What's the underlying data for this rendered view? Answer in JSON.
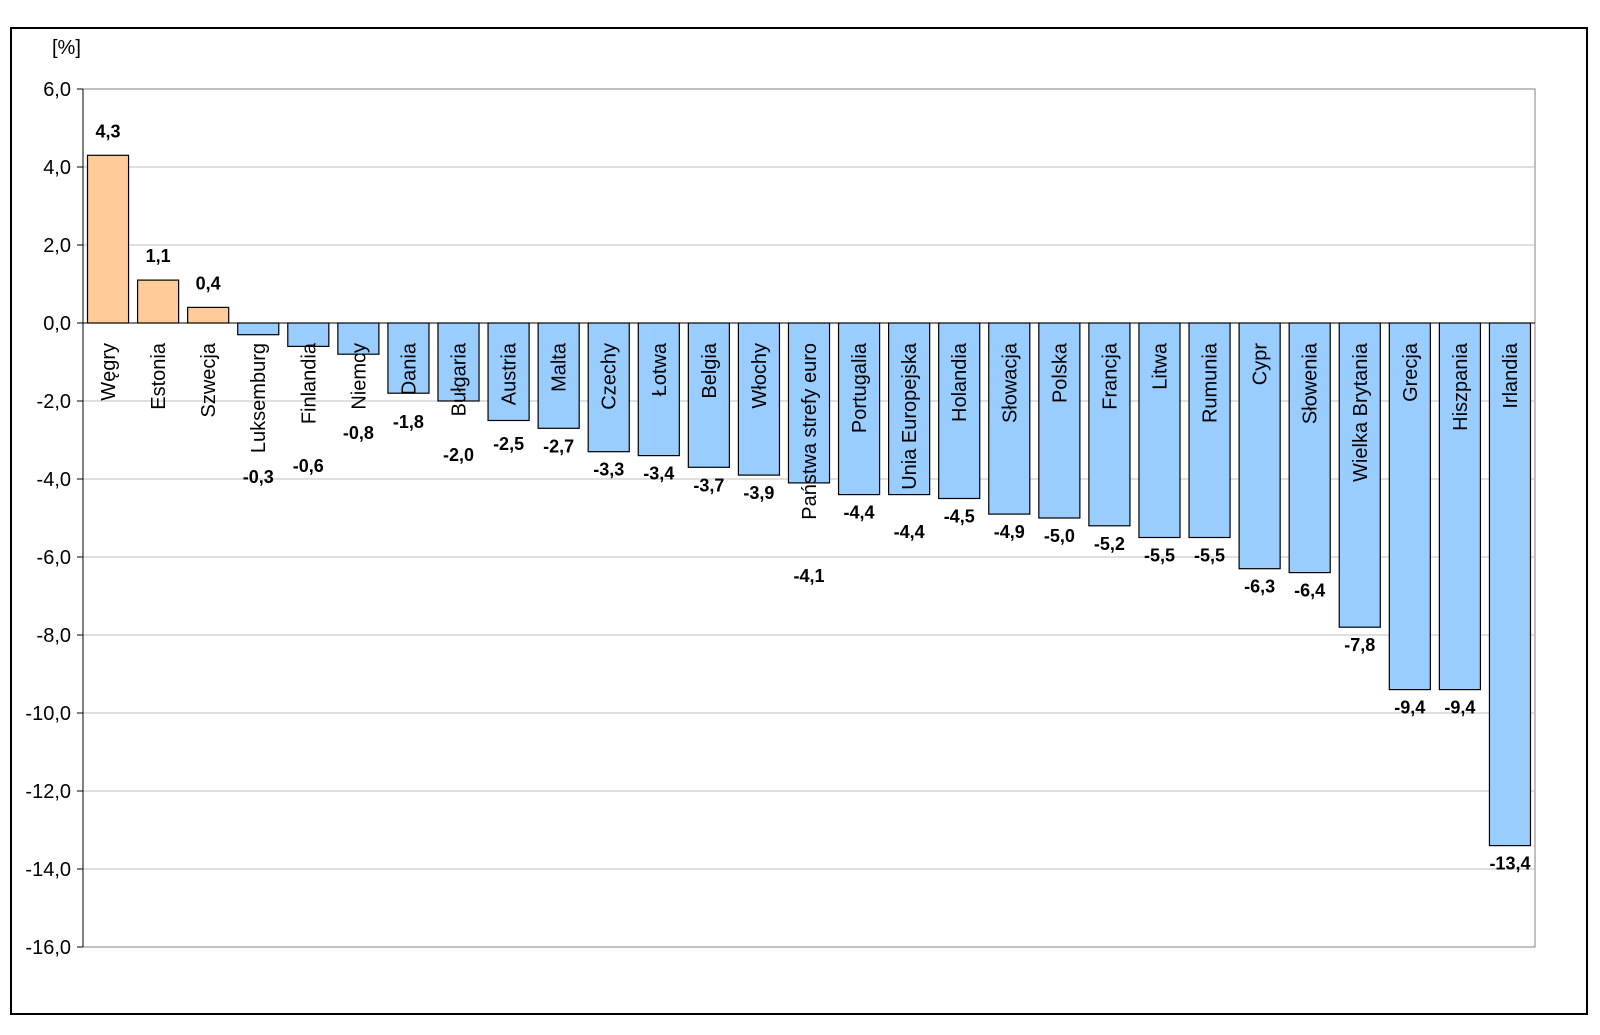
{
  "chart_data": {
    "type": "bar",
    "unit_label": "[%]",
    "categories": [
      "Węgry",
      "Estonia",
      "Szwecja",
      "Luksemburg",
      "Finlandia",
      "Niemcy",
      "Dania",
      "Bułgaria",
      "Austria",
      "Malta",
      "Czechy",
      "Łotwa",
      "Belgia",
      "Włochy",
      "Państwa strefy euro",
      "Portugalia",
      "Unia Europejska",
      "Holandia",
      "Słowacja",
      "Polska",
      "Francja",
      "Litwa",
      "Rumunia",
      "Cypr",
      "Słowenia",
      "Wielka Brytania",
      "Grecja",
      "Hiszpania",
      "Irlandia"
    ],
    "values": [
      4.3,
      1.1,
      0.4,
      -0.3,
      -0.6,
      -0.8,
      -1.8,
      -2.0,
      -2.5,
      -2.7,
      -3.3,
      -3.4,
      -3.7,
      -3.9,
      -4.1,
      -4.4,
      -4.4,
      -4.5,
      -4.9,
      -5.0,
      -5.2,
      -5.5,
      -5.5,
      -6.3,
      -6.4,
      -7.8,
      -9.4,
      -9.4,
      -13.4
    ],
    "data_labels": [
      "4,3",
      "1,1",
      "0,4",
      "-0,3",
      "-0,6",
      "-0,8",
      "-1,8",
      "-2,0",
      "-2,5",
      "-2,7",
      "-3,3",
      "-3,4",
      "-3,7",
      "-3,9",
      "-4,1",
      "-4,4",
      "-4,4",
      "-4,5",
      "-4,9",
      "-5,0",
      "-5,2",
      "-5,5",
      "-5,5",
      "-6,3",
      "-6,4",
      "-7,8",
      "-9,4",
      "-9,4",
      "-13,4"
    ],
    "ylim": [
      -16,
      6
    ],
    "yticks": [
      6,
      4,
      2,
      0,
      -2,
      -4,
      -6,
      -8,
      -10,
      -12,
      -14,
      -16
    ],
    "ytick_labels": [
      "6,0",
      "4,0",
      "2,0",
      "0,0",
      "-2,0",
      "-4,0",
      "-6,0",
      "-8,0",
      "-10,0",
      "-12,0",
      "-14,0",
      "-16,0"
    ],
    "grid": true,
    "colors": {
      "positive": "#FFCC99",
      "negative": "#99CCFF",
      "border": "#000000",
      "grid": "#BFBFBF"
    }
  }
}
